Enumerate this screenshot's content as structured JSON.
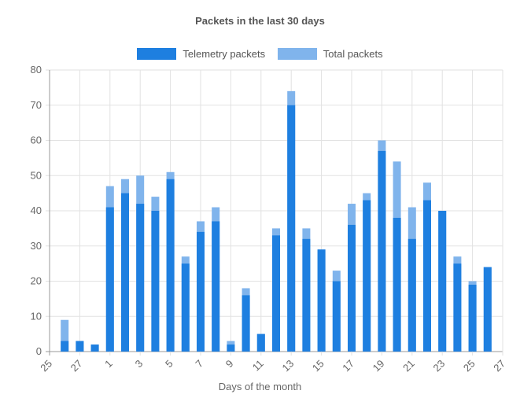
{
  "chart_data": {
    "type": "bar",
    "title": "Packets in the last 30 days",
    "xlabel": "Days of the month",
    "ylabel": "",
    "ylim": [
      0,
      80
    ],
    "yticks": [
      0,
      10,
      20,
      30,
      40,
      50,
      60,
      70,
      80
    ],
    "x_tick_labels": [
      "25",
      "27",
      "1",
      "3",
      "5",
      "7",
      "9",
      "11",
      "13",
      "15",
      "17",
      "19",
      "21",
      "23",
      "25",
      "27"
    ],
    "categories": [
      "25",
      "26",
      "27",
      "28",
      "1",
      "2",
      "3",
      "4",
      "5",
      "6",
      "7",
      "8",
      "9",
      "10",
      "11",
      "12",
      "13",
      "14",
      "15",
      "16",
      "17",
      "18",
      "19",
      "20",
      "21",
      "22",
      "23",
      "24",
      "25",
      "26",
      "27"
    ],
    "series": [
      {
        "name": "Telemetry packets",
        "color": "#1e7fe0",
        "values": [
          null,
          3,
          3,
          2,
          41,
          45,
          42,
          40,
          49,
          25,
          34,
          37,
          2,
          16,
          5,
          33,
          70,
          32,
          29,
          20,
          36,
          43,
          57,
          38,
          32,
          43,
          40,
          25,
          19,
          24,
          null
        ]
      },
      {
        "name": "Total packets",
        "color": "#80b4ec",
        "values": [
          null,
          9,
          3,
          2,
          47,
          49,
          50,
          44,
          51,
          27,
          37,
          41,
          3,
          18,
          5,
          35,
          74,
          35,
          29,
          23,
          42,
          45,
          60,
          54,
          41,
          48,
          40,
          27,
          20,
          24,
          null
        ]
      }
    ],
    "grid": true,
    "legend_position": "top"
  }
}
